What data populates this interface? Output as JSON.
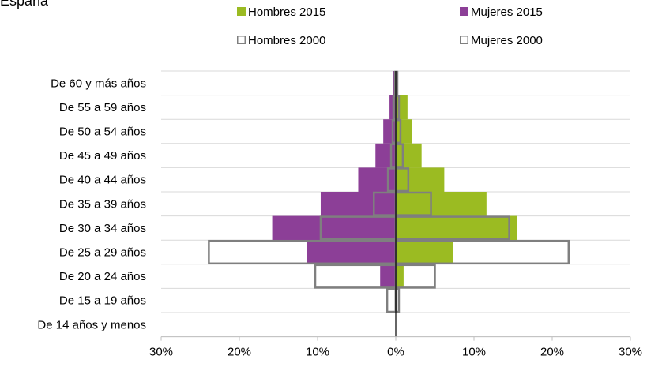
{
  "title_fragment": "España",
  "chart_data": {
    "type": "bar",
    "orientation": "horizontal-population-pyramid",
    "categories": [
      "De 60 y más años",
      "De 55 a 59 años",
      "De 50 a 54 años",
      "De 45 a 49 años",
      "De 40 a 44 años",
      "De 35 a 39 años",
      "De 30 a 34 años",
      "De 25 a 29 años",
      "De 20 a 24 años",
      "De 15 a 19 años",
      "De 14 años y menos"
    ],
    "series": [
      {
        "name": "Hombres 2015",
        "side": "right",
        "style": "filled",
        "color": "#9bbb22",
        "values": [
          0.3,
          1.5,
          2.1,
          3.3,
          6.2,
          11.6,
          15.5,
          7.3,
          1.0,
          0.0,
          0.0
        ]
      },
      {
        "name": "Mujeres 2015",
        "side": "left",
        "style": "filled",
        "color": "#8c3f97",
        "values": [
          0.3,
          0.8,
          1.6,
          2.6,
          4.8,
          9.6,
          15.8,
          11.4,
          2.0,
          0.0,
          0.0
        ]
      },
      {
        "name": "Hombres 2000",
        "side": "right",
        "style": "outline",
        "color": "#7f7f7f",
        "values": [
          0.2,
          0.4,
          0.6,
          0.9,
          1.6,
          4.5,
          14.5,
          22.1,
          5.0,
          0.4,
          0.0
        ]
      },
      {
        "name": "Mujeres 2000",
        "side": "left",
        "style": "outline",
        "color": "#7f7f7f",
        "values": [
          0.1,
          0.3,
          0.4,
          0.6,
          1.0,
          2.8,
          9.6,
          23.9,
          10.3,
          1.1,
          0.0
        ]
      }
    ],
    "x_ticks": [
      "30%",
      "20%",
      "10%",
      "0%",
      "10%",
      "20%",
      "30%"
    ],
    "xlim": [
      -30,
      30
    ],
    "unit": "%",
    "grid": "horizontal",
    "legend_position": "top-right"
  }
}
